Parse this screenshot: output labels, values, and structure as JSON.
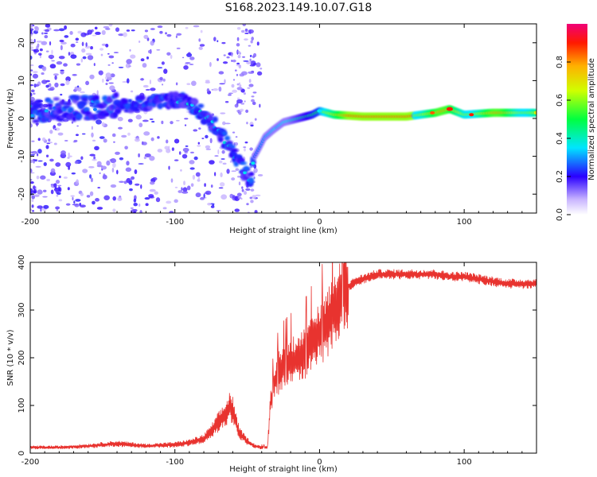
{
  "title": "S168.2023.149.10.07.G18",
  "chart_data": [
    {
      "type": "heatmap",
      "xlabel": "Height of straight line (km)",
      "ylabel": "Frequency (Hz)",
      "xlim": [
        -200,
        150
      ],
      "ylim": [
        -25,
        25
      ],
      "x_ticks": [
        -200,
        -100,
        0,
        100
      ],
      "y_ticks": [
        -20,
        -10,
        0,
        10,
        20
      ],
      "colorbar": {
        "label": "Normalized spectral amplitude",
        "range": [
          0,
          1
        ],
        "ticks": [
          0.0,
          0.2,
          0.4,
          0.6,
          0.8
        ]
      },
      "ridge": {
        "x": [
          -200,
          -160,
          -140,
          -120,
          -100,
          -90,
          -80,
          -70,
          -60,
          -55,
          -50,
          -48,
          -45,
          -42,
          -38,
          -32,
          -25,
          -15,
          -5,
          0,
          10,
          30,
          60,
          80,
          90,
          100,
          120,
          150
        ],
        "y": [
          2,
          3,
          3.5,
          4,
          5,
          4,
          1,
          -3,
          -9,
          -12,
          -15,
          -17,
          -10,
          -8,
          -5,
          -3,
          -1,
          0,
          1,
          2,
          1,
          0.5,
          0.5,
          1.5,
          2.5,
          1,
          1.5,
          1.5
        ]
      }
    },
    {
      "type": "line",
      "xlabel": "Height of straight line (km)",
      "ylabel": "SNR (10 * v/v)",
      "xlim": [
        -200,
        150
      ],
      "ylim": [
        0,
        400
      ],
      "x_ticks": [
        -200,
        -100,
        0,
        100
      ],
      "y_ticks": [
        0,
        100,
        200,
        300,
        400
      ],
      "color": "#e8332f",
      "envelope": {
        "x": [
          -200,
          -180,
          -160,
          -140,
          -120,
          -100,
          -90,
          -80,
          -75,
          -70,
          -65,
          -62,
          -60,
          -57,
          -55,
          -50,
          -45,
          -40,
          -36,
          -34,
          -31,
          -28,
          -25,
          -20,
          -15,
          -10,
          -5,
          0,
          5,
          10,
          15,
          20,
          25,
          30,
          35,
          40,
          50,
          60,
          70,
          80,
          90,
          100,
          110,
          120,
          130,
          140,
          150
        ],
        "y": [
          12,
          12,
          15,
          20,
          15,
          18,
          22,
          30,
          45,
          65,
          80,
          100,
          90,
          55,
          40,
          25,
          15,
          12,
          12,
          100,
          150,
          170,
          180,
          190,
          200,
          210,
          230,
          250,
          270,
          300,
          330,
          350,
          360,
          365,
          370,
          375,
          375,
          375,
          375,
          375,
          370,
          370,
          365,
          360,
          355,
          355,
          355
        ]
      }
    }
  ]
}
